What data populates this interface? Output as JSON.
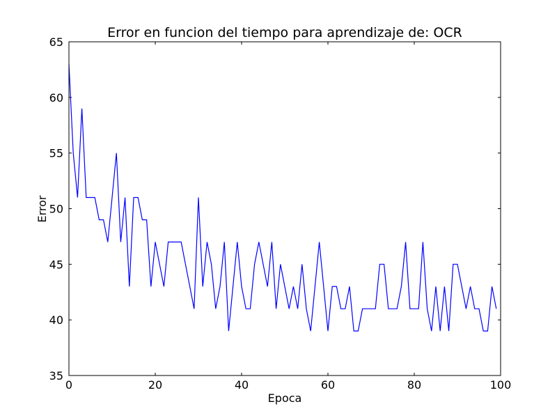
{
  "chart_data": {
    "type": "line",
    "title": "Error en funcion del tiempo para aprendizaje de: OCR",
    "xlabel": "Epoca",
    "ylabel": "Error",
    "x": [
      0,
      1,
      2,
      3,
      4,
      5,
      6,
      7,
      8,
      9,
      10,
      11,
      12,
      13,
      14,
      15,
      16,
      17,
      18,
      19,
      20,
      21,
      22,
      23,
      24,
      25,
      26,
      27,
      28,
      29,
      30,
      31,
      32,
      33,
      34,
      35,
      36,
      37,
      38,
      39,
      40,
      41,
      42,
      43,
      44,
      45,
      46,
      47,
      48,
      49,
      50,
      51,
      52,
      53,
      54,
      55,
      56,
      57,
      58,
      59,
      60,
      61,
      62,
      63,
      64,
      65,
      66,
      67,
      68,
      69,
      70,
      71,
      72,
      73,
      74,
      75,
      76,
      77,
      78,
      79,
      80,
      81,
      82,
      83,
      84,
      85,
      86,
      87,
      88,
      89,
      90,
      91,
      92,
      93,
      94,
      95,
      96,
      97,
      98,
      99
    ],
    "values": [
      63,
      55,
      51,
      59,
      51,
      51,
      51,
      49,
      49,
      47,
      51,
      55,
      47,
      51,
      43,
      51,
      51,
      49,
      49,
      43,
      47,
      45,
      43,
      47,
      47,
      47,
      47,
      45,
      43,
      41,
      51,
      43,
      47,
      45,
      41,
      43,
      47,
      39,
      43,
      47,
      43,
      41,
      41,
      45,
      47,
      45,
      43,
      47,
      41,
      45,
      43,
      41,
      43,
      41,
      45,
      41,
      39,
      43,
      47,
      43,
      39,
      43,
      43,
      41,
      41,
      43,
      39,
      39,
      41,
      41,
      41,
      41,
      45,
      45,
      41,
      41,
      41,
      43,
      47,
      41,
      41,
      41,
      47,
      41,
      39,
      43,
      39,
      43,
      39,
      45,
      45,
      43,
      41,
      43,
      41,
      41,
      39,
      39,
      43,
      41
    ],
    "color": "#0000ff",
    "xlim": [
      0,
      100
    ],
    "xticks": [
      0,
      20,
      40,
      60,
      80,
      100
    ],
    "ylim": [
      35,
      65
    ],
    "yticks": [
      35,
      40,
      45,
      50,
      55,
      60,
      65
    ]
  }
}
